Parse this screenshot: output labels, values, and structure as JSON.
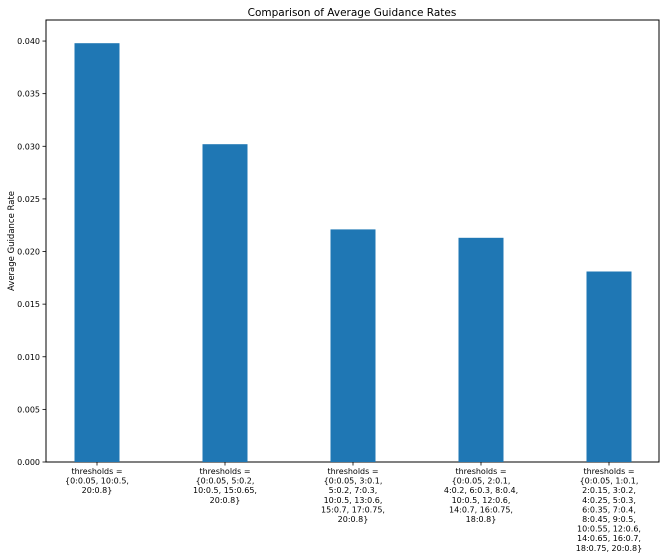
{
  "chart_data": {
    "type": "bar",
    "title": "Comparison of Average Guidance Rates",
    "xlabel": "",
    "ylabel": "Average Guidance Rate",
    "categories": [
      [
        "thresholds =",
        "{0:0.05, 10:0.5,",
        "20:0.8}"
      ],
      [
        "thresholds =",
        "{0:0.05, 5:0.2,",
        "10:0.5, 15:0.65,",
        "20:0.8}"
      ],
      [
        "thresholds =",
        "{0:0.05, 3:0.1,",
        "5:0.2, 7:0.3,",
        "10:0.5, 13:0.6,",
        "15:0.7, 17:0.75,",
        "20:0.8}"
      ],
      [
        "thresholds =",
        "{0:0.05, 2:0.1,",
        "4:0.2, 6:0.3, 8:0.4,",
        "10:0.5, 12:0.6,",
        "14:0.7, 16:0.75,",
        "18:0.8}"
      ],
      [
        "thresholds =",
        "{0:0.05, 1:0.1,",
        "2:0.15, 3:0.2,",
        "4:0.25, 5:0.3,",
        "6:0.35, 7:0.4,",
        "8:0.45, 9:0.5,",
        "10:0.55, 12:0.6,",
        "14:0.65, 16:0.7,",
        "18:0.75, 20:0.8}"
      ]
    ],
    "values": [
      0.0398,
      0.0302,
      0.0221,
      0.0213,
      0.0181
    ],
    "ylim": [
      0,
      0.042
    ],
    "yticks": [
      "0.000",
      "0.005",
      "0.010",
      "0.015",
      "0.020",
      "0.025",
      "0.030",
      "0.035",
      "0.040"
    ],
    "grid": false,
    "bar_color": "#1f77b4"
  }
}
